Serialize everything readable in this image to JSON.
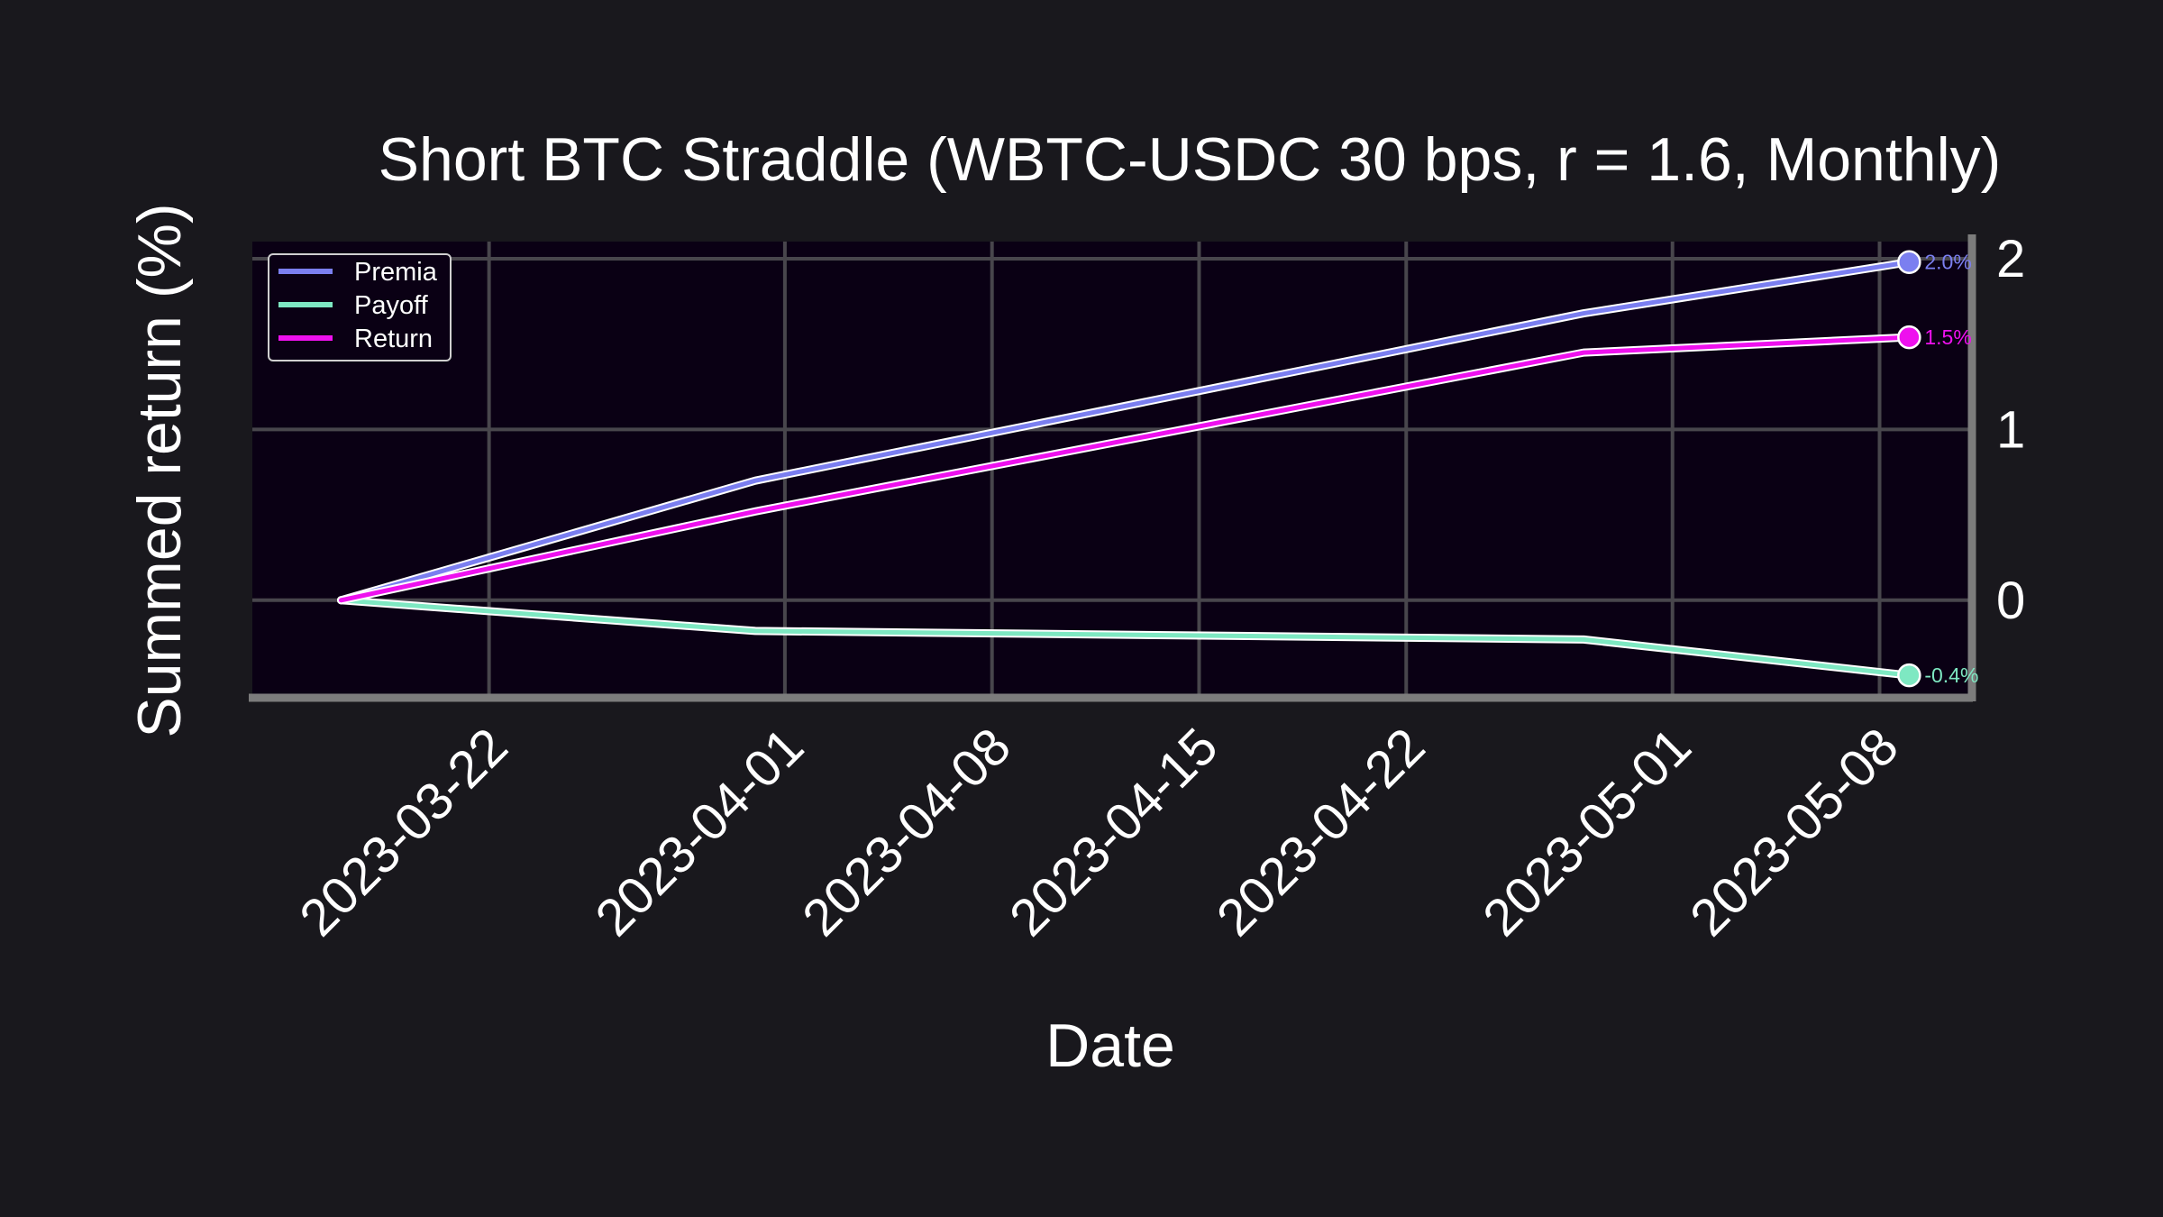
{
  "chart_data": {
    "type": "line",
    "title": "Short BTC Straddle (WBTC-USDC 30 bps, r = 1.6, Monthly)",
    "xlabel": "Date",
    "ylabel": "Summed return (%)",
    "x_axis_type": "date",
    "xlim": [
      "2023-03-14",
      "2023-05-11"
    ],
    "ylim": [
      -0.55,
      2.1
    ],
    "x_ticks": [
      "2023-03-22",
      "2023-04-01",
      "2023-04-08",
      "2023-04-15",
      "2023-04-22",
      "2023-05-01",
      "2023-05-08"
    ],
    "y_ticks": [
      0,
      1,
      2
    ],
    "y_axis_side": "right",
    "grid": true,
    "legend_position": "top-left",
    "x": [
      "2023-03-17",
      "2023-03-31",
      "2023-04-28",
      "2023-05-09"
    ],
    "series": [
      {
        "name": "Premia",
        "color": "#7b7ff0",
        "values": [
          0.0,
          0.7,
          1.68,
          1.98
        ],
        "end_label": "2.0%"
      },
      {
        "name": "Payoff",
        "color": "#7ee8c2",
        "values": [
          0.0,
          -0.18,
          -0.23,
          -0.44
        ],
        "end_label": "-0.4%"
      },
      {
        "name": "Return",
        "color": "#ee11ee",
        "values": [
          0.0,
          0.52,
          1.45,
          1.54
        ],
        "end_label": "1.5%"
      }
    ],
    "colors": {
      "background": "#19181d",
      "plot_background": "#0a0014",
      "grid": "#48464c",
      "spine": "#7c7c7c",
      "text": "#ffffff"
    }
  }
}
